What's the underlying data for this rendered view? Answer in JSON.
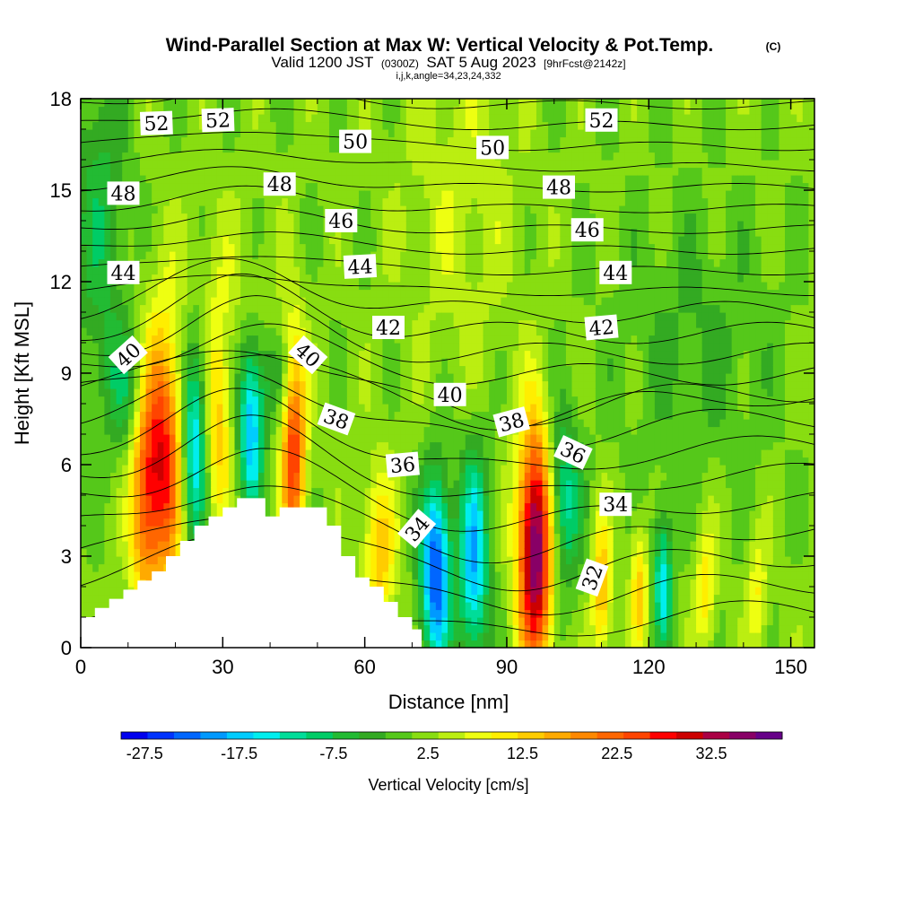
{
  "title": {
    "main": "Wind-Parallel Section at Max W: Vertical Velocity & Pot.Temp.",
    "copyright": "(C)",
    "valid_prefix": "Valid 1200 JST",
    "valid_zulu": "(0300Z)",
    "valid_date": "SAT 5 Aug 2023",
    "forecast": "[9hrFcst@2142z]",
    "indices": "i,j,k,angle=34,23,24,332"
  },
  "chart_data": {
    "type": "heatmap",
    "xlabel": "Distance [nm]",
    "ylabel": "Height [Kft MSL]",
    "xlim": [
      0,
      155
    ],
    "ylim": [
      0,
      18
    ],
    "x_ticks": [
      0,
      30,
      60,
      90,
      120,
      150
    ],
    "y_ticks": [
      0,
      3,
      6,
      9,
      12,
      15,
      18
    ],
    "colorbar": {
      "label": "Vertical Velocity [cm/s]",
      "range": [
        -30,
        40
      ],
      "tick_values": [
        -27.5,
        -17.5,
        -7.5,
        2.5,
        12.5,
        22.5,
        32.5
      ],
      "tick_labels": [
        "-27.5",
        "-17.5",
        "-7.5",
        "2.5",
        "12.5",
        "22.5",
        "32.5"
      ],
      "colors": [
        "#0000ee",
        "#0033ff",
        "#0066ff",
        "#0099ff",
        "#00ccff",
        "#00eeee",
        "#00dd99",
        "#00cc66",
        "#22bb33",
        "#33aa22",
        "#55c81a",
        "#88dd11",
        "#bbee11",
        "#eeff11",
        "#ffee00",
        "#ffcc00",
        "#ffaa00",
        "#ff8800",
        "#ff6600",
        "#ff4400",
        "#ff0000",
        "#cc0000",
        "#aa0044",
        "#880066",
        "#660088"
      ]
    },
    "terrain": [
      [
        0,
        1
      ],
      [
        3,
        1
      ],
      [
        3,
        1.3
      ],
      [
        6,
        1.3
      ],
      [
        6,
        1.6
      ],
      [
        9,
        1.6
      ],
      [
        9,
        1.9
      ],
      [
        12,
        1.9
      ],
      [
        12,
        2.2
      ],
      [
        15,
        2.2
      ],
      [
        15,
        2.5
      ],
      [
        18,
        2.5
      ],
      [
        18,
        3
      ],
      [
        21,
        3
      ],
      [
        21,
        3.5
      ],
      [
        24,
        3.5
      ],
      [
        24,
        4
      ],
      [
        27,
        4
      ],
      [
        27,
        4.3
      ],
      [
        30,
        4.3
      ],
      [
        30,
        4.6
      ],
      [
        33,
        4.6
      ],
      [
        33,
        4.9
      ],
      [
        39,
        4.9
      ],
      [
        39,
        4.3
      ],
      [
        42,
        4.3
      ],
      [
        42,
        4.6
      ],
      [
        46,
        4.6
      ],
      [
        46,
        4.6
      ],
      [
        52,
        4.6
      ],
      [
        52,
        4
      ],
      [
        55,
        4
      ],
      [
        55,
        3
      ],
      [
        58,
        3
      ],
      [
        58,
        2.3
      ],
      [
        61,
        2.3
      ],
      [
        61,
        2
      ],
      [
        64,
        2
      ],
      [
        64,
        1.5
      ],
      [
        67,
        1.5
      ],
      [
        67,
        1
      ],
      [
        70,
        1
      ],
      [
        70,
        0.6
      ],
      [
        72,
        0.6
      ],
      [
        72,
        0
      ]
    ],
    "w_cells": [
      {
        "x": 17,
        "z": 6.2,
        "sx": 3.2,
        "sz": 3.0,
        "w": 27
      },
      {
        "x": 13,
        "z": 4.5,
        "sx": 2.0,
        "sz": 2.5,
        "w": 12
      },
      {
        "x": 24,
        "z": 6.8,
        "sx": 1.8,
        "sz": 2.4,
        "w": -20
      },
      {
        "x": 29,
        "z": 7.3,
        "sx": 2.0,
        "sz": 2.4,
        "w": 12
      },
      {
        "x": 36,
        "z": 7.2,
        "sx": 1.8,
        "sz": 2.0,
        "w": -20
      },
      {
        "x": 45,
        "z": 6.5,
        "sx": 1.8,
        "sz": 2.6,
        "w": 24
      },
      {
        "x": 41,
        "z": 8.8,
        "sx": 3.0,
        "sz": 1.0,
        "w": -6
      },
      {
        "x": 10,
        "z": 8.5,
        "sx": 3.5,
        "sz": 1.5,
        "w": -8
      },
      {
        "x": 63,
        "z": 3.0,
        "sx": 2.5,
        "sz": 2.0,
        "w": 12
      },
      {
        "x": 75,
        "z": 2.5,
        "sx": 2.2,
        "sz": 2.2,
        "w": -27
      },
      {
        "x": 83,
        "z": 2.8,
        "sx": 2.2,
        "sz": 2.5,
        "w": -20
      },
      {
        "x": 96,
        "z": 3.3,
        "sx": 2.6,
        "sz": 2.8,
        "w": 37
      },
      {
        "x": 102,
        "z": 4.8,
        "sx": 2.5,
        "sz": 2.0,
        "w": -14
      },
      {
        "x": 110,
        "z": 2.0,
        "sx": 1.5,
        "sz": 1.6,
        "w": 14
      },
      {
        "x": 118,
        "z": 2.0,
        "sx": 1.3,
        "sz": 1.5,
        "w": 12
      },
      {
        "x": 123,
        "z": 2.2,
        "sx": 1.4,
        "sz": 1.5,
        "w": -17
      },
      {
        "x": 132,
        "z": 2.0,
        "sx": 1.5,
        "sz": 1.5,
        "w": 10
      },
      {
        "x": 143,
        "z": 1.8,
        "sx": 1.5,
        "sz": 1.4,
        "w": 8
      },
      {
        "x": 80,
        "z": 14.5,
        "sx": 9,
        "sz": 4,
        "w": 4
      },
      {
        "x": 30,
        "z": 12.0,
        "sx": 8,
        "sz": 2,
        "w": 3
      },
      {
        "x": 130,
        "z": 10.0,
        "sx": 12,
        "sz": 3,
        "w": -4
      },
      {
        "x": 4,
        "z": 14.0,
        "sx": 4,
        "sz": 4,
        "w": -8
      }
    ],
    "theta_levels": [
      30,
      31,
      32,
      33,
      34,
      35,
      36,
      37,
      38,
      39,
      40,
      41,
      42,
      43,
      44,
      45,
      46,
      47,
      48,
      49,
      50,
      51,
      52,
      53
    ],
    "contour_labels": [
      {
        "value": "52",
        "x": 16,
        "z": 17.2,
        "angle": -2
      },
      {
        "value": "52",
        "x": 29,
        "z": 17.3,
        "angle": -2
      },
      {
        "value": "52",
        "x": 110,
        "z": 17.3,
        "angle": 0
      },
      {
        "value": "50",
        "x": 58,
        "z": 16.6,
        "angle": 0
      },
      {
        "value": "50",
        "x": 87,
        "z": 16.4,
        "angle": 0
      },
      {
        "value": "48",
        "x": 9,
        "z": 14.9,
        "angle": 0
      },
      {
        "value": "48",
        "x": 42,
        "z": 15.2,
        "angle": 0
      },
      {
        "value": "48",
        "x": 101,
        "z": 15.1,
        "angle": 0
      },
      {
        "value": "46",
        "x": 55,
        "z": 14.0,
        "angle": 0
      },
      {
        "value": "46",
        "x": 107,
        "z": 13.7,
        "angle": 0
      },
      {
        "value": "44",
        "x": 9,
        "z": 12.3,
        "angle": 0
      },
      {
        "value": "44",
        "x": 59,
        "z": 12.5,
        "angle": -3
      },
      {
        "value": "44",
        "x": 113,
        "z": 12.3,
        "angle": 0
      },
      {
        "value": "42",
        "x": 65,
        "z": 10.5,
        "angle": 0
      },
      {
        "value": "42",
        "x": 110,
        "z": 10.5,
        "angle": -5
      },
      {
        "value": "40",
        "x": 10,
        "z": 9.6,
        "angle": -42
      },
      {
        "value": "40",
        "x": 48,
        "z": 9.6,
        "angle": 42
      },
      {
        "value": "40",
        "x": 78,
        "z": 8.3,
        "angle": 0
      },
      {
        "value": "38",
        "x": 54,
        "z": 7.5,
        "angle": 20
      },
      {
        "value": "38",
        "x": 91,
        "z": 7.4,
        "angle": -15
      },
      {
        "value": "36",
        "x": 68,
        "z": 6.0,
        "angle": -5
      },
      {
        "value": "36",
        "x": 104,
        "z": 6.4,
        "angle": 25
      },
      {
        "value": "34",
        "x": 71,
        "z": 3.9,
        "angle": -50
      },
      {
        "value": "34",
        "x": 113,
        "z": 4.7,
        "angle": 0
      },
      {
        "value": "32",
        "x": 108,
        "z": 2.3,
        "angle": -70
      }
    ]
  }
}
